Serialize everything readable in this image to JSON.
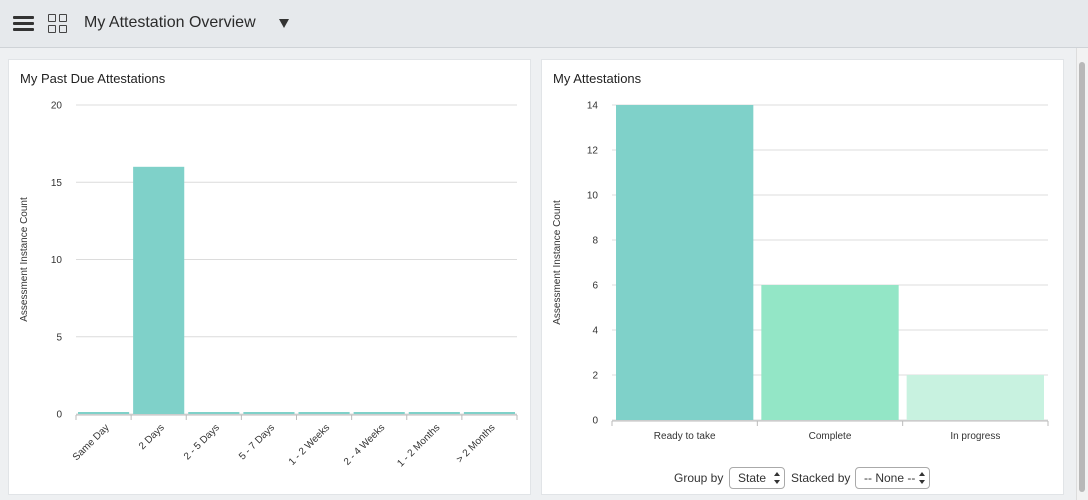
{
  "header": {
    "title": "My Attestation Overview",
    "menu_icon": "hamburger-menu-icon",
    "grid_icon": "grid-view-icon",
    "dropdown_icon": "caret-down-icon"
  },
  "widgets": {
    "past_due": {
      "title": "My Past Due Attestations"
    },
    "attestations": {
      "title": "My Attestations",
      "group_by": {
        "label": "Group by",
        "value": "State"
      },
      "stacked_by": {
        "label": "Stacked by",
        "value": "-- None --"
      }
    }
  },
  "chart_data": [
    {
      "type": "bar",
      "title": "My Past Due Attestations",
      "ylabel": "Assessment Instance Count",
      "xlabel": "",
      "categories": [
        "Same Day",
        "2 Days",
        "2 - 5 Days",
        "5 - 7 Days",
        "1 - 2 Weeks",
        "2 - 4 Weeks",
        "1 - 2 Months",
        "> 2 Months"
      ],
      "values": [
        0,
        16,
        0,
        0,
        0,
        0,
        0,
        0
      ],
      "colors": [
        "#7fd1c9",
        "#7fd1c9",
        "#7fd1c9",
        "#7fd1c9",
        "#7fd1c9",
        "#7fd1c9",
        "#7fd1c9",
        "#7fd1c9"
      ],
      "ylim": [
        0,
        20
      ],
      "yticks": [
        0,
        5,
        10,
        15,
        20
      ],
      "grid": true,
      "tick_rotation": -45
    },
    {
      "type": "bar",
      "title": "My Attestations",
      "ylabel": "Assessment Instance Count",
      "xlabel": "",
      "categories": [
        "Ready to take",
        "Complete",
        "In progress"
      ],
      "values": [
        14,
        6,
        2
      ],
      "colors": [
        "#7fd1c9",
        "#93e6c6",
        "#c8f2e0"
      ],
      "ylim": [
        0,
        14
      ],
      "yticks": [
        0,
        2,
        4,
        6,
        8,
        10,
        12,
        14
      ],
      "grid": true,
      "tick_rotation": 0
    }
  ]
}
